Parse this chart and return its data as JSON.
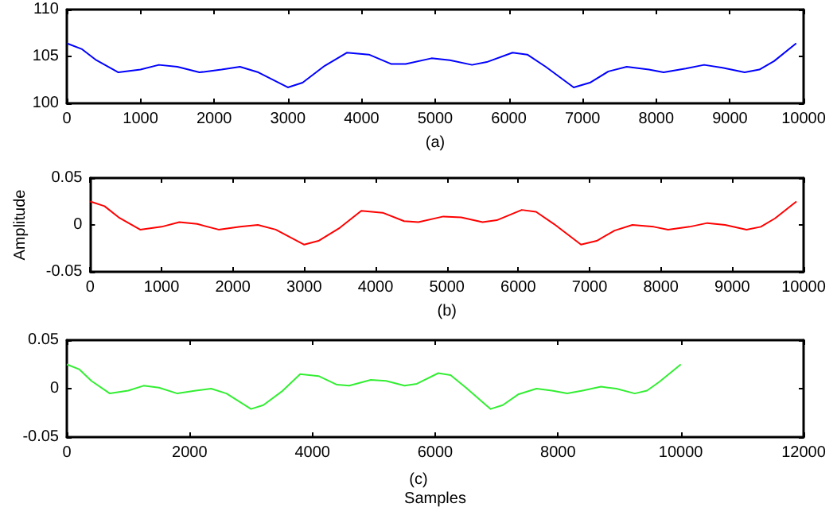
{
  "chart_data": [
    {
      "type": "line",
      "xlabel": "(a)",
      "x": [
        0,
        200,
        400,
        700,
        1000,
        1250,
        1500,
        1800,
        2100,
        2350,
        2600,
        3000,
        3200,
        3500,
        3800,
        4100,
        4400,
        4600,
        4950,
        5200,
        5500,
        5700,
        6050,
        6250,
        6500,
        6880,
        7100,
        7350,
        7600,
        7900,
        8100,
        8400,
        8650,
        8900,
        9200,
        9400,
        9600,
        9900
      ],
      "series": [
        {
          "color": "#0000ff",
          "values": [
            106.4,
            105.8,
            104.6,
            103.3,
            103.6,
            104.1,
            103.9,
            103.3,
            103.6,
            103.9,
            103.3,
            101.7,
            102.2,
            104.0,
            105.4,
            105.2,
            104.2,
            104.2,
            104.8,
            104.6,
            104.1,
            104.4,
            105.4,
            105.2,
            103.9,
            101.7,
            102.2,
            103.4,
            103.9,
            103.6,
            103.3,
            103.7,
            104.1,
            103.8,
            103.3,
            103.6,
            104.5,
            106.4
          ]
        }
      ],
      "xlim": [
        0,
        10000
      ],
      "xticks": [
        0,
        1000,
        2000,
        3000,
        4000,
        5000,
        6000,
        7000,
        8000,
        9000,
        10000
      ],
      "ylim": [
        100,
        110
      ],
      "yticks": [
        100,
        105,
        110
      ],
      "grid": false,
      "marker": "none",
      "line_style": "solid"
    },
    {
      "type": "line",
      "xlabel": "(b)",
      "ylabel": "Amplitude",
      "x": [
        0,
        200,
        400,
        700,
        1000,
        1250,
        1500,
        1800,
        2100,
        2350,
        2600,
        3000,
        3200,
        3500,
        3800,
        4100,
        4400,
        4600,
        4950,
        5200,
        5500,
        5700,
        6050,
        6250,
        6500,
        6880,
        7100,
        7350,
        7600,
        7900,
        8100,
        8400,
        8650,
        8900,
        9200,
        9400,
        9600,
        9900
      ],
      "series": [
        {
          "color": "#ff0000",
          "values": [
            0.025,
            0.02,
            0.008,
            -0.005,
            -0.002,
            0.003,
            0.001,
            -0.005,
            -0.002,
            0.0,
            -0.005,
            -0.021,
            -0.017,
            -0.003,
            0.015,
            0.013,
            0.004,
            0.003,
            0.009,
            0.008,
            0.003,
            0.005,
            0.016,
            0.014,
            0.001,
            -0.021,
            -0.017,
            -0.006,
            0.0,
            -0.002,
            -0.005,
            -0.002,
            0.002,
            0.0,
            -0.005,
            -0.002,
            0.007,
            0.025
          ]
        }
      ],
      "xlim": [
        0,
        10000
      ],
      "xticks": [
        0,
        1000,
        2000,
        3000,
        4000,
        5000,
        6000,
        7000,
        8000,
        9000,
        10000
      ],
      "ylim": [
        -0.05,
        0.05
      ],
      "yticks": [
        -0.05,
        0,
        0.05
      ],
      "grid": false,
      "marker": "none",
      "line_style": "solid"
    },
    {
      "type": "line",
      "xlabel": "Samples",
      "annotations": [
        "(c)"
      ],
      "x": [
        0,
        200,
        400,
        700,
        1000,
        1250,
        1500,
        1800,
        2100,
        2350,
        2600,
        3000,
        3200,
        3500,
        3800,
        4100,
        4400,
        4600,
        4950,
        5200,
        5500,
        5700,
        6050,
        6250,
        6500,
        6900,
        7100,
        7350,
        7650,
        7900,
        8150,
        8400,
        8700,
        8950,
        9250,
        9450,
        9650,
        10000
      ],
      "series": [
        {
          "color": "#33ee33",
          "values": [
            0.025,
            0.02,
            0.008,
            -0.005,
            -0.002,
            0.003,
            0.001,
            -0.005,
            -0.002,
            0.0,
            -0.005,
            -0.021,
            -0.017,
            -0.003,
            0.015,
            0.013,
            0.004,
            0.003,
            0.009,
            0.008,
            0.003,
            0.005,
            0.016,
            0.014,
            0.001,
            -0.021,
            -0.017,
            -0.006,
            0.0,
            -0.002,
            -0.005,
            -0.002,
            0.002,
            0.0,
            -0.005,
            -0.002,
            0.007,
            0.025
          ]
        }
      ],
      "xlim": [
        0,
        12000
      ],
      "xticks": [
        0,
        2000,
        4000,
        6000,
        8000,
        10000,
        12000
      ],
      "ylim": [
        -0.05,
        0.05
      ],
      "yticks": [
        -0.05,
        0,
        0.05
      ],
      "grid": false,
      "marker": "none",
      "line_style": "solid"
    }
  ]
}
